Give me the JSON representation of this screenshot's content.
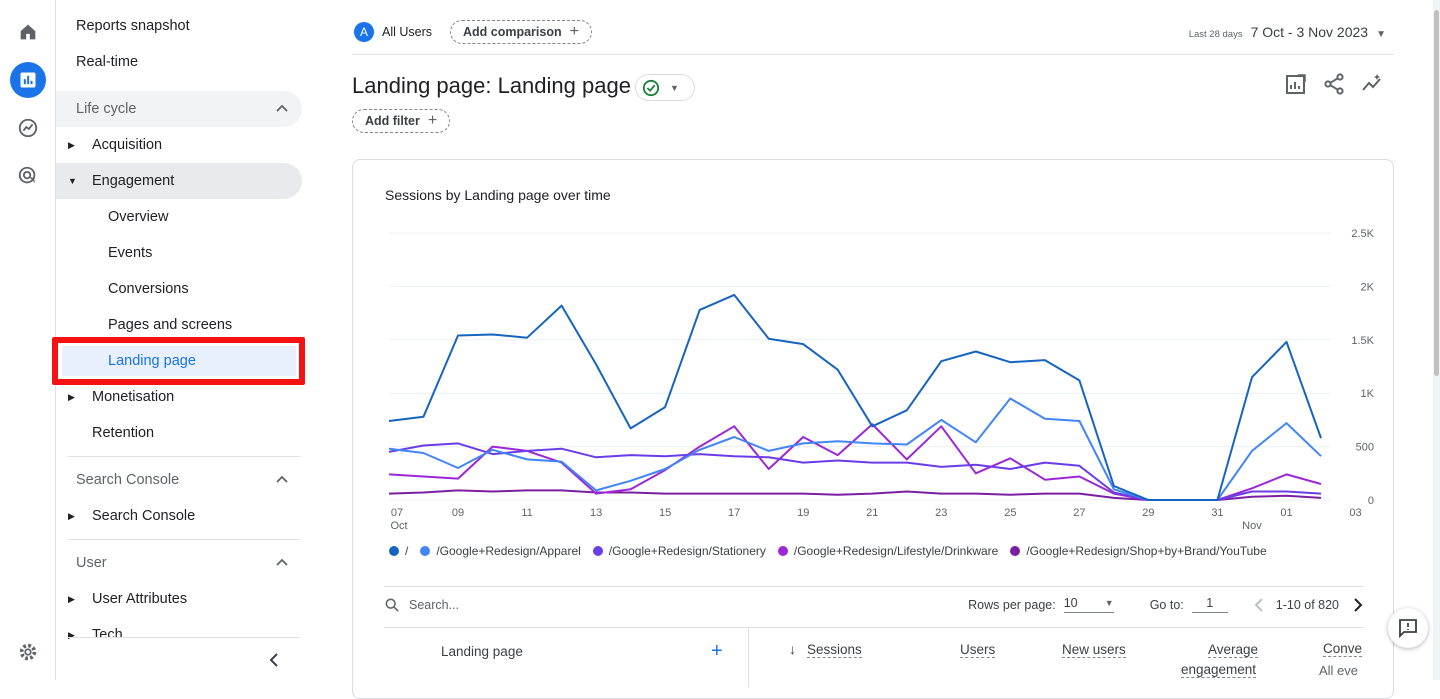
{
  "rail": {
    "icons": [
      "home-icon",
      "reports-icon",
      "explore-icon",
      "advertising-icon",
      "settings-icon"
    ]
  },
  "nav": {
    "reports_snapshot": "Reports snapshot",
    "realtime": "Real-time",
    "lifecycle": "Life cycle",
    "acquisition": "Acquisition",
    "engagement": "Engagement",
    "overview": "Overview",
    "events": "Events",
    "conversions": "Conversions",
    "pages_and_screens": "Pages and screens",
    "landing_page": "Landing page",
    "monetisation": "Monetisation",
    "retention": "Retention",
    "search_console_section": "Search Console",
    "search_console_item": "Search Console",
    "user_section": "User",
    "user_attributes": "User Attributes",
    "tech": "Tech"
  },
  "header": {
    "segment_avatar": "A",
    "segment": "All Users",
    "add_comparison": "Add comparison",
    "date_label": "Last 28 days",
    "date_range": "7 Oct - 3 Nov 2023",
    "title": "Landing page: Landing page",
    "add_filter": "Add filter"
  },
  "colors": {
    "accent": "#1a73e8",
    "highlight_box": "#f41212",
    "status_green": "#188038"
  },
  "chart_data": {
    "type": "line",
    "title": "Sessions by Landing page over time",
    "x_tick_labels": [
      "07",
      "09",
      "11",
      "13",
      "15",
      "17",
      "19",
      "21",
      "23",
      "25",
      "27",
      "29",
      "31",
      "01",
      "03"
    ],
    "x_tick_sublabels": [
      "Oct",
      "Nov"
    ],
    "y_tick_labels": [
      "2.5K",
      "2K",
      "1.5K",
      "1K",
      "500",
      "0"
    ],
    "ylim": [
      0,
      2500
    ],
    "x": [
      "2023-10-07",
      "2023-10-08",
      "2023-10-09",
      "2023-10-10",
      "2023-10-11",
      "2023-10-12",
      "2023-10-13",
      "2023-10-14",
      "2023-10-15",
      "2023-10-16",
      "2023-10-17",
      "2023-10-18",
      "2023-10-19",
      "2023-10-20",
      "2023-10-21",
      "2023-10-22",
      "2023-10-23",
      "2023-10-24",
      "2023-10-25",
      "2023-10-26",
      "2023-10-27",
      "2023-10-28",
      "2023-10-29",
      "2023-10-30",
      "2023-10-31",
      "2023-11-01",
      "2023-11-02",
      "2023-11-03"
    ],
    "series": [
      {
        "name": "/",
        "color": "#1565c0",
        "values": [
          740,
          780,
          1540,
          1550,
          1520,
          1820,
          1270,
          670,
          870,
          1780,
          1920,
          1510,
          1460,
          1220,
          690,
          840,
          1300,
          1390,
          1290,
          1310,
          1120,
          130,
          0,
          0,
          0,
          1150,
          1480,
          580
        ]
      },
      {
        "name": "/Google+Redesign/Apparel",
        "color": "#4285f4",
        "values": [
          480,
          440,
          300,
          470,
          380,
          360,
          90,
          180,
          290,
          470,
          590,
          460,
          530,
          550,
          530,
          520,
          750,
          540,
          950,
          760,
          740,
          100,
          0,
          0,
          0,
          460,
          720,
          410
        ]
      },
      {
        "name": "/Google+Redesign/Stationery",
        "color": "#6a3de8",
        "values": [
          450,
          510,
          530,
          430,
          460,
          480,
          400,
          420,
          410,
          430,
          410,
          400,
          350,
          370,
          350,
          350,
          310,
          330,
          290,
          350,
          320,
          70,
          0,
          0,
          0,
          80,
          80,
          60
        ]
      },
      {
        "name": "/Google+Redesign/Lifestyle/Drinkware",
        "color": "#9c27d6",
        "values": [
          240,
          220,
          200,
          500,
          460,
          350,
          60,
          100,
          280,
          500,
          690,
          290,
          590,
          420,
          710,
          380,
          690,
          250,
          390,
          190,
          220,
          60,
          0,
          0,
          0,
          110,
          240,
          150
        ]
      },
      {
        "name": "/Google+Redesign/Shop+by+Brand/YouTube",
        "color": "#7b1fa2",
        "values": [
          60,
          70,
          90,
          80,
          90,
          90,
          70,
          70,
          60,
          60,
          60,
          60,
          60,
          50,
          60,
          80,
          60,
          60,
          50,
          60,
          60,
          20,
          0,
          0,
          0,
          30,
          40,
          20
        ]
      }
    ]
  },
  "table": {
    "search_placeholder": "Search...",
    "rows_per_page_label": "Rows per page:",
    "rows_per_page": "10",
    "goto_label": "Go to:",
    "goto_value": "1",
    "range": "1-10 of 820",
    "col_landing_page": "Landing page",
    "col_sessions": "Sessions",
    "col_users": "Users",
    "col_new_users": "New users",
    "col_avg_engagement_1": "Average",
    "col_avg_engagement_2": "engagement",
    "col_conversions": "Conve",
    "col_conversions_sub": "All eve"
  }
}
